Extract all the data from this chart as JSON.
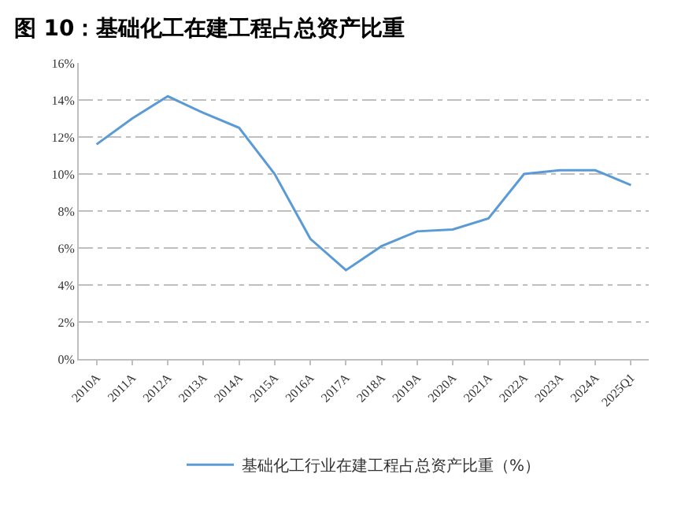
{
  "chart_data": {
    "type": "line",
    "title": "图 10：基础化工在建工程占总资产比重",
    "categories": [
      "2010A",
      "2011A",
      "2012A",
      "2013A",
      "2014A",
      "2015A",
      "2016A",
      "2017A",
      "2018A",
      "2019A",
      "2020A",
      "2021A",
      "2022A",
      "2023A",
      "2024A",
      "2025Q1"
    ],
    "series": [
      {
        "name": "基础化工行业在建工程占总资产比重（%）",
        "color": "#5b9bd5",
        "values": [
          11.6,
          13.0,
          14.2,
          13.3,
          12.5,
          10.0,
          6.5,
          4.8,
          6.1,
          6.9,
          7.0,
          7.6,
          10.0,
          10.2,
          10.2,
          9.4
        ]
      }
    ],
    "ylim": [
      0,
      16
    ],
    "yticks": [
      {
        "value": 0,
        "label": "0%"
      },
      {
        "value": 2,
        "label": "2%"
      },
      {
        "value": 4,
        "label": "4%"
      },
      {
        "value": 6,
        "label": "6%"
      },
      {
        "value": 8,
        "label": "8%"
      },
      {
        "value": 10,
        "label": "10%"
      },
      {
        "value": 12,
        "label": "12%"
      },
      {
        "value": 14,
        "label": "14%"
      },
      {
        "value": 16,
        "label": "16%"
      }
    ],
    "grid": "y",
    "legend": "bottom",
    "marker": "none",
    "line_style": "solid"
  }
}
